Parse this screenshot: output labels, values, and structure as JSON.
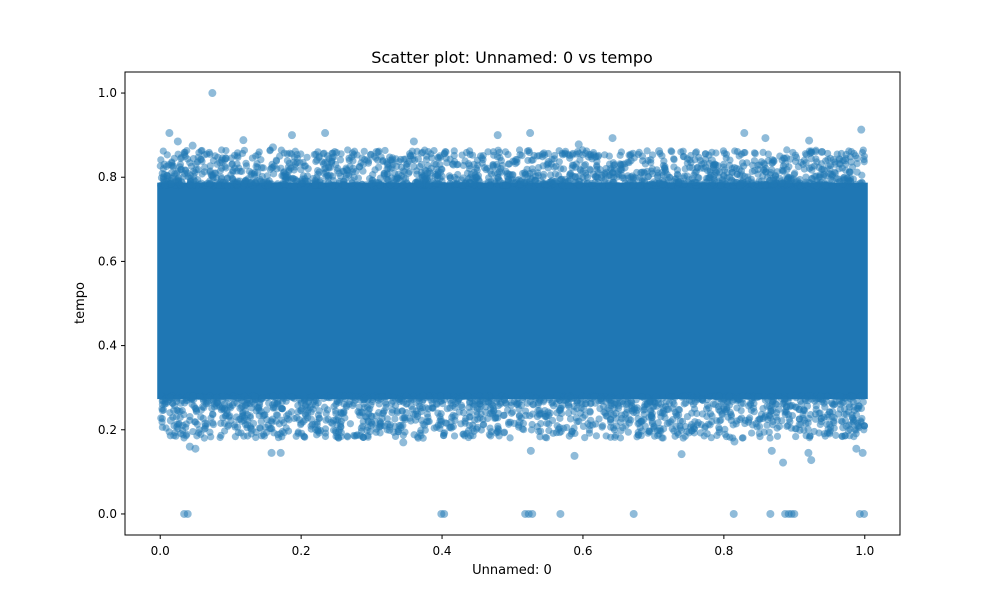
{
  "chart_data": {
    "type": "scatter",
    "title": "Scatter plot: Unnamed: 0 vs tempo",
    "xlabel": "Unnamed: 0",
    "ylabel": "tempo",
    "xlim": [
      -0.05,
      1.05
    ],
    "ylim": [
      -0.05,
      1.05
    ],
    "xticks": [
      0.0,
      0.2,
      0.4,
      0.6,
      0.8,
      1.0
    ],
    "xtick_labels": [
      "0.0",
      "0.2",
      "0.4",
      "0.6",
      "0.8",
      "1.0"
    ],
    "yticks": [
      0.0,
      0.2,
      0.4,
      0.6,
      0.8,
      1.0
    ],
    "ytick_labels": [
      "0.0",
      "0.2",
      "0.4",
      "0.6",
      "0.8",
      "1.0"
    ],
    "grid": false,
    "legend": "none",
    "color": "#1f77b4",
    "alpha": 0.5,
    "dense_band": {
      "x_range": [
        0.0,
        1.0
      ],
      "y_range": [
        0.28,
        0.78
      ]
    },
    "points": [
      [
        0.074,
        1.0
      ],
      [
        0.013,
        0.905
      ],
      [
        0.234,
        0.905
      ],
      [
        0.525,
        0.905
      ],
      [
        0.829,
        0.905
      ],
      [
        0.995,
        0.913
      ],
      [
        0.187,
        0.9
      ],
      [
        0.479,
        0.9
      ],
      [
        0.642,
        0.893
      ],
      [
        0.859,
        0.893
      ],
      [
        0.025,
        0.885
      ],
      [
        0.36,
        0.885
      ],
      [
        0.921,
        0.887
      ],
      [
        0.118,
        0.888
      ],
      [
        0.594,
        0.878
      ],
      [
        0.046,
        0.875
      ],
      [
        0.307,
        0.86
      ],
      [
        0.708,
        0.862
      ],
      [
        0.939,
        0.86
      ],
      [
        0.16,
        0.871
      ],
      [
        0.006,
        0.83
      ],
      [
        0.093,
        0.845
      ],
      [
        0.274,
        0.82
      ],
      [
        0.416,
        0.83
      ],
      [
        0.551,
        0.836
      ],
      [
        0.783,
        0.84
      ],
      [
        0.887,
        0.832
      ],
      [
        0.972,
        0.84
      ],
      [
        0.015,
        0.222
      ],
      [
        0.064,
        0.215
      ],
      [
        0.13,
        0.2
      ],
      [
        0.158,
        0.145
      ],
      [
        0.171,
        0.145
      ],
      [
        0.305,
        0.218
      ],
      [
        0.345,
        0.17
      ],
      [
        0.413,
        0.205
      ],
      [
        0.51,
        0.218
      ],
      [
        0.526,
        0.15
      ],
      [
        0.588,
        0.138
      ],
      [
        0.665,
        0.225
      ],
      [
        0.74,
        0.142
      ],
      [
        0.815,
        0.172
      ],
      [
        0.868,
        0.15
      ],
      [
        0.884,
        0.122
      ],
      [
        0.92,
        0.145
      ],
      [
        0.924,
        0.128
      ],
      [
        0.988,
        0.155
      ],
      [
        0.997,
        0.145
      ],
      [
        0.042,
        0.16
      ],
      [
        0.05,
        0.155
      ],
      [
        0.039,
        0.0
      ],
      [
        0.034,
        0.0
      ],
      [
        0.403,
        0.0
      ],
      [
        0.399,
        0.0
      ],
      [
        0.518,
        0.0
      ],
      [
        0.523,
        0.0
      ],
      [
        0.528,
        0.0
      ],
      [
        0.568,
        0.0
      ],
      [
        0.672,
        0.0
      ],
      [
        0.814,
        0.0
      ],
      [
        0.866,
        0.0
      ],
      [
        0.887,
        0.0
      ],
      [
        0.892,
        0.0
      ],
      [
        0.896,
        0.0
      ],
      [
        0.9,
        0.0
      ],
      [
        0.993,
        0.0
      ],
      [
        0.999,
        0.0
      ]
    ]
  }
}
